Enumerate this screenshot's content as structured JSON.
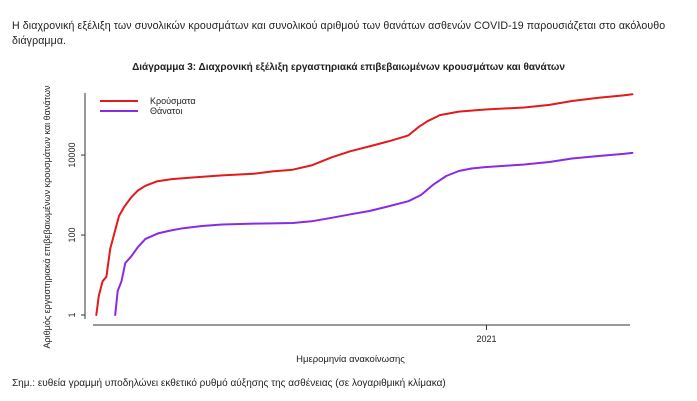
{
  "intro_text": "Η διαχρονική εξέλιξη των συνολικών κρουσμάτων και συνολικού αριθμού των θανάτων ασθενών COVID-19 παρουσιάζεται στο ακόλουθο διάγραμμα.",
  "footnote": "Σημ.: ευθεία γραμμή υποδηλώνει εκθετικό ρυθμό αύξησης της ασθένειας (σε λογαριθμική κλίμακα)",
  "colors": {
    "cases": "#e31a1c",
    "deaths": "#8a2be2",
    "axis": "#333333"
  },
  "chart_data": {
    "type": "line",
    "title": "Διάγραμμα 3: Διαχρονική εξέλιξη εργαστηριακά επιβεβαιωμένων κρουσμάτων και θανάτων",
    "xlabel": "Ημερομηνία ανακοίνωσης",
    "ylabel": "Αριθμός εργαστηριακά επιβεβαιωμένων κρουσμάτων και θανάτων",
    "y_scale": "log",
    "ylim": [
      1,
      300000
    ],
    "y_ticks": [
      1,
      100,
      10000
    ],
    "y_tick_labels": [
      "1",
      "100",
      "10000"
    ],
    "xlim": [
      "2020-02-17",
      "2021-05-03"
    ],
    "x_ticks": [
      "2021-01-01"
    ],
    "x_tick_labels": [
      "2021"
    ],
    "legend_position": "top-left",
    "grid": false,
    "series": [
      {
        "name": "Κρούσματα",
        "color": "#e31a1c",
        "points": [
          [
            "2020-02-26",
            1
          ],
          [
            "2020-02-28",
            3
          ],
          [
            "2020-03-02",
            7
          ],
          [
            "2020-03-05",
            9
          ],
          [
            "2020-03-08",
            45
          ],
          [
            "2020-03-11",
            100
          ],
          [
            "2020-03-15",
            300
          ],
          [
            "2020-03-19",
            500
          ],
          [
            "2020-03-25",
            900
          ],
          [
            "2020-03-30",
            1300
          ],
          [
            "2020-04-05",
            1700
          ],
          [
            "2020-04-14",
            2200
          ],
          [
            "2020-04-26",
            2500
          ],
          [
            "2020-05-15",
            2800
          ],
          [
            "2020-06-05",
            3100
          ],
          [
            "2020-06-30",
            3400
          ],
          [
            "2020-07-15",
            3900
          ],
          [
            "2020-07-31",
            4300
          ],
          [
            "2020-08-15",
            5500
          ],
          [
            "2020-08-31",
            8800
          ],
          [
            "2020-09-15",
            12500
          ],
          [
            "2020-09-30",
            16500
          ],
          [
            "2020-10-15",
            22000
          ],
          [
            "2020-10-31",
            31000
          ],
          [
            "2020-11-08",
            50000
          ],
          [
            "2020-11-15",
            70000
          ],
          [
            "2020-11-25",
            100000
          ],
          [
            "2020-12-10",
            122000
          ],
          [
            "2020-12-31",
            138000
          ],
          [
            "2021-01-31",
            155000
          ],
          [
            "2021-02-20",
            180000
          ],
          [
            "2021-03-10",
            225000
          ],
          [
            "2021-03-31",
            272000
          ],
          [
            "2021-04-20",
            310000
          ],
          [
            "2021-04-27",
            330000
          ]
        ]
      },
      {
        "name": "Θάνατοι",
        "color": "#8a2be2",
        "points": [
          [
            "2020-03-12",
            1
          ],
          [
            "2020-03-14",
            4
          ],
          [
            "2020-03-17",
            7
          ],
          [
            "2020-03-20",
            20
          ],
          [
            "2020-03-25",
            30
          ],
          [
            "2020-03-30",
            50
          ],
          [
            "2020-04-05",
            80
          ],
          [
            "2020-04-15",
            110
          ],
          [
            "2020-04-25",
            130
          ],
          [
            "2020-05-05",
            148
          ],
          [
            "2020-05-20",
            168
          ],
          [
            "2020-06-05",
            183
          ],
          [
            "2020-06-30",
            193
          ],
          [
            "2020-07-15",
            195
          ],
          [
            "2020-07-31",
            200
          ],
          [
            "2020-08-15",
            220
          ],
          [
            "2020-08-31",
            270
          ],
          [
            "2020-09-15",
            330
          ],
          [
            "2020-09-30",
            400
          ],
          [
            "2020-10-15",
            520
          ],
          [
            "2020-10-31",
            700
          ],
          [
            "2020-11-10",
            1000
          ],
          [
            "2020-11-20",
            1850
          ],
          [
            "2020-11-30",
            3000
          ],
          [
            "2020-12-10",
            4000
          ],
          [
            "2020-12-20",
            4600
          ],
          [
            "2020-12-31",
            5000
          ],
          [
            "2021-01-31",
            5800
          ],
          [
            "2021-02-20",
            6700
          ],
          [
            "2021-03-10",
            8200
          ],
          [
            "2021-03-31",
            9500
          ],
          [
            "2021-04-20",
            10700
          ],
          [
            "2021-04-27",
            11300
          ]
        ]
      }
    ]
  }
}
